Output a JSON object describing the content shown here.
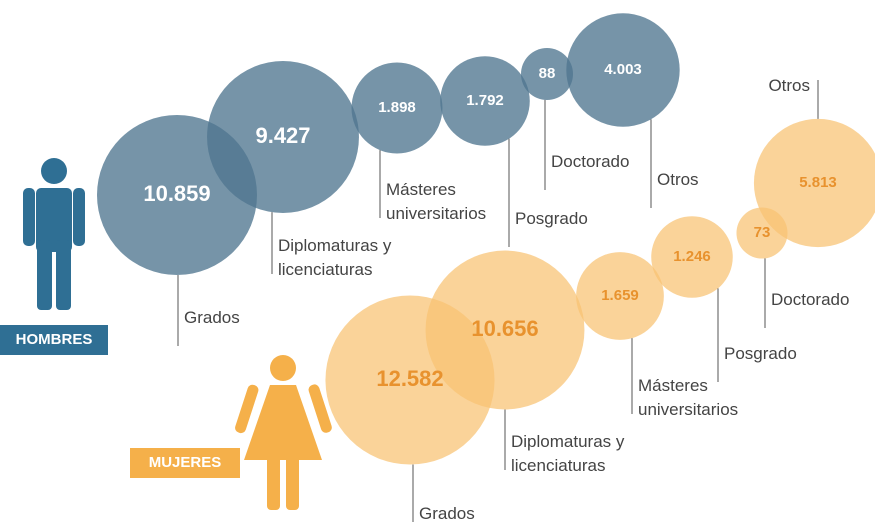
{
  "chart_data": {
    "type": "bubble",
    "categories": [
      "Grados",
      "Diplomaturas y licenciaturas",
      "Másteres universitarios",
      "Posgrado",
      "Doctorado",
      "Otros"
    ],
    "series": [
      {
        "name": "HOMBRES",
        "color": "#4f7690",
        "text_color": "#ffffff",
        "values": [
          10859,
          9427,
          1898,
          1792,
          88,
          4003
        ],
        "value_labels": [
          "10.859",
          "9.427",
          "1.898",
          "1.792",
          "88",
          "4.003"
        ]
      },
      {
        "name": "MUJERES",
        "color": "#f8c271",
        "text_color": "#e8922e",
        "values": [
          12582,
          10656,
          1659,
          1246,
          73,
          5813
        ],
        "value_labels": [
          "12.582",
          "10.656",
          "1.659",
          "1.246",
          "73",
          "5.813"
        ]
      }
    ]
  }
}
